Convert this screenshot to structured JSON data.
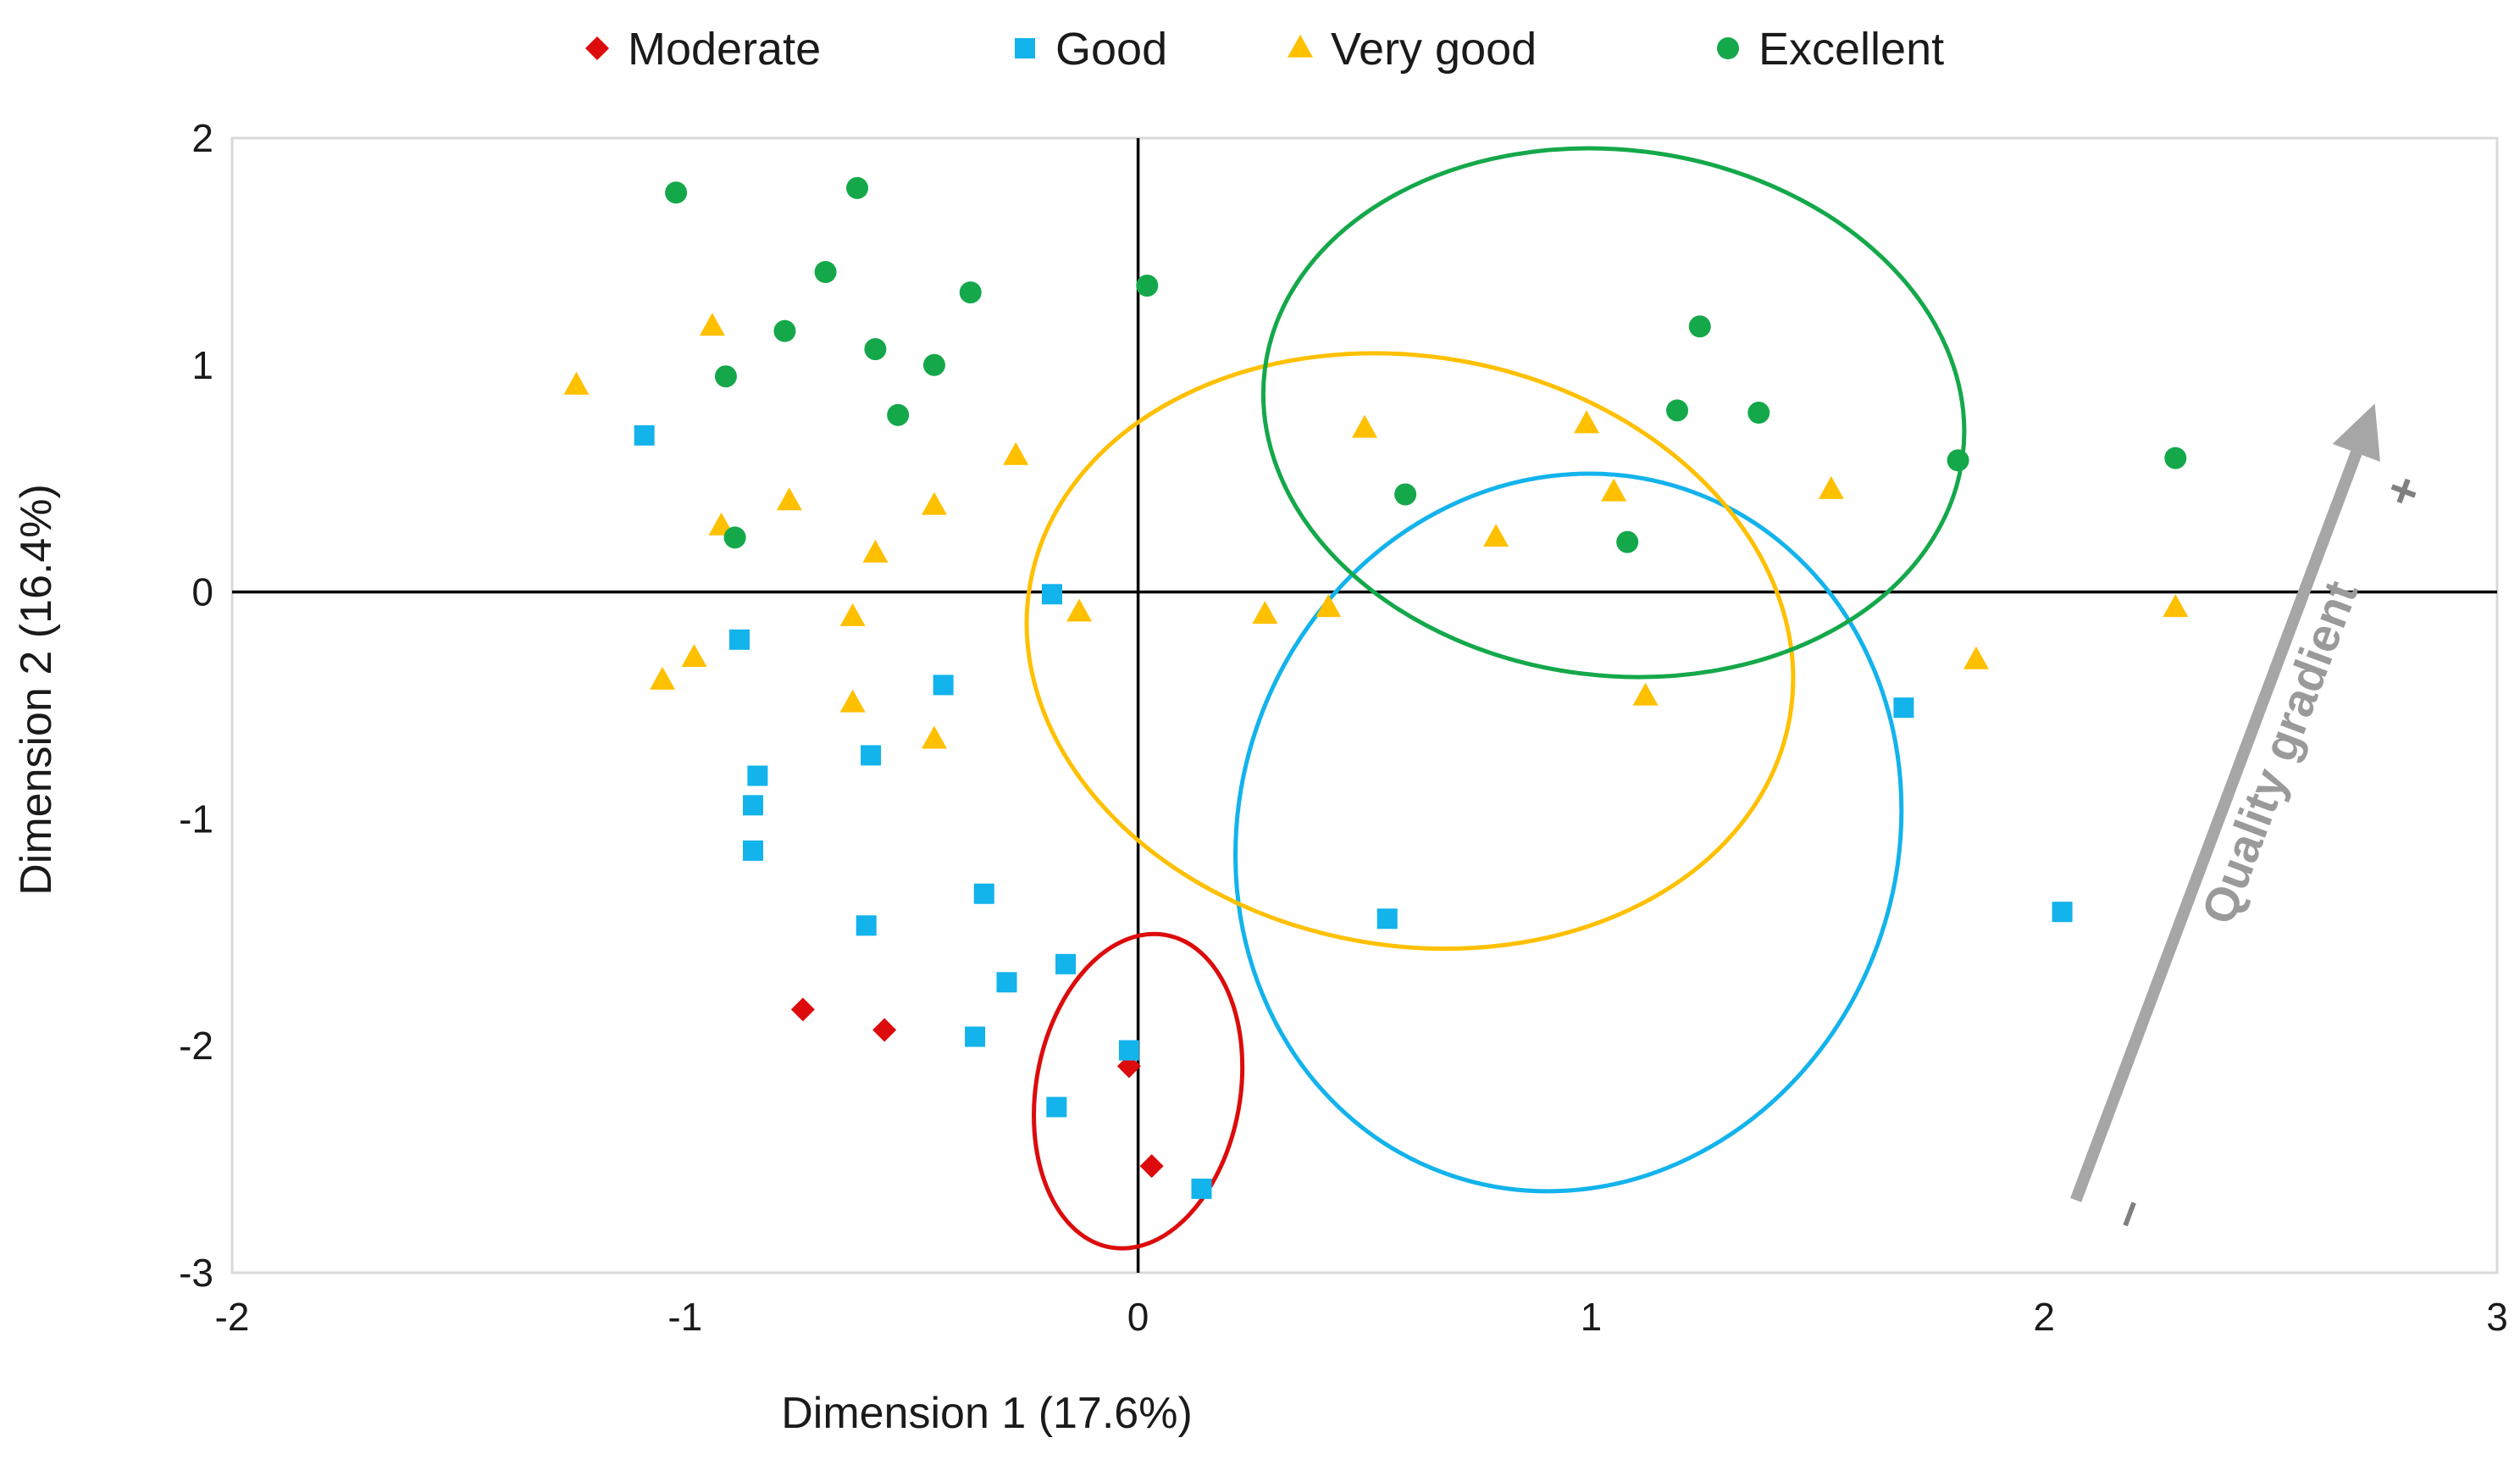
{
  "chart_data": {
    "type": "scatter",
    "title": "",
    "xlabel": "Dimension 1 (17.6%)",
    "ylabel": "Dimension 2 (16.4%)",
    "xlim": [
      -2,
      3
    ],
    "ylim": [
      -3,
      2
    ],
    "xticks": [
      -2,
      -1,
      0,
      1,
      2,
      3
    ],
    "yticks": [
      -3,
      -2,
      -1,
      0,
      1,
      2
    ],
    "xtick_labels": [
      "-2",
      "-1",
      "0",
      "1",
      "2",
      "3"
    ],
    "ytick_labels": [
      "-3",
      "-2",
      "-1",
      "0",
      "1",
      "2"
    ],
    "grid": false,
    "legend_position": "top",
    "colors": {
      "Moderate": "#dd0b0b",
      "Good": "#13b3ec",
      "Very good": "#ffc000",
      "Excellent": "#14a84a",
      "gradient": "#a6a6a6",
      "axis": "#000000",
      "frame": "#d9d9d9"
    },
    "series": [
      {
        "name": "Moderate",
        "marker": "diamond",
        "points": [
          [
            -0.74,
            -1.84
          ],
          [
            -0.56,
            -1.93
          ],
          [
            -0.02,
            -2.09
          ],
          [
            0.03,
            -2.53
          ]
        ]
      },
      {
        "name": "Good",
        "marker": "square",
        "points": [
          [
            -1.09,
            0.69
          ],
          [
            -0.88,
            -0.21
          ],
          [
            -0.84,
            -0.81
          ],
          [
            -0.85,
            -0.94
          ],
          [
            -0.85,
            -1.14
          ],
          [
            -0.59,
            -0.72
          ],
          [
            -0.43,
            -0.41
          ],
          [
            -0.19,
            -0.01
          ],
          [
            -0.6,
            -1.47
          ],
          [
            -0.34,
            -1.33
          ],
          [
            -0.29,
            -1.72
          ],
          [
            -0.16,
            -1.64
          ],
          [
            -0.36,
            -1.96
          ],
          [
            -0.18,
            -2.27
          ],
          [
            -0.02,
            -2.02
          ],
          [
            0.14,
            -2.63
          ],
          [
            0.55,
            -1.44
          ],
          [
            1.69,
            -0.51
          ],
          [
            2.04,
            -1.41
          ]
        ]
      },
      {
        "name": "Very good",
        "marker": "triangle",
        "points": [
          [
            -1.24,
            0.91
          ],
          [
            -0.94,
            1.17
          ],
          [
            -0.92,
            0.29
          ],
          [
            -0.77,
            0.4
          ],
          [
            -0.98,
            -0.29
          ],
          [
            -1.05,
            -0.39
          ],
          [
            -0.63,
            -0.11
          ],
          [
            -0.58,
            0.17
          ],
          [
            -0.63,
            -0.49
          ],
          [
            -0.45,
            0.38
          ],
          [
            -0.27,
            0.6
          ],
          [
            -0.45,
            -0.65
          ],
          [
            -0.13,
            -0.09
          ],
          [
            0.28,
            -0.1
          ],
          [
            0.42,
            -0.07
          ],
          [
            0.5,
            0.72
          ],
          [
            0.79,
            0.24
          ],
          [
            0.99,
            0.74
          ],
          [
            1.05,
            0.44
          ],
          [
            1.12,
            -0.46
          ],
          [
            1.53,
            0.45
          ],
          [
            1.85,
            -0.3
          ],
          [
            2.29,
            -0.07
          ]
        ]
      },
      {
        "name": "Excellent",
        "marker": "circle",
        "points": [
          [
            -1.02,
            1.76
          ],
          [
            -0.91,
            0.95
          ],
          [
            -0.89,
            0.24
          ],
          [
            -0.78,
            1.15
          ],
          [
            -0.69,
            1.41
          ],
          [
            -0.62,
            1.78
          ],
          [
            -0.58,
            1.07
          ],
          [
            -0.53,
            0.78
          ],
          [
            -0.45,
            1.0
          ],
          [
            -0.37,
            1.32
          ],
          [
            0.02,
            1.35
          ],
          [
            0.59,
            0.43
          ],
          [
            1.08,
            0.22
          ],
          [
            1.19,
            0.8
          ],
          [
            1.24,
            1.17
          ],
          [
            1.37,
            0.79
          ],
          [
            1.81,
            0.58
          ],
          [
            2.29,
            0.59
          ]
        ]
      }
    ],
    "ellipses": [
      {
        "name": "Moderate",
        "cx": 0.0,
        "cy": -2.2,
        "rx": 0.35,
        "ry": 0.45,
        "angle": -10
      },
      {
        "name": "Good",
        "cx": 0.95,
        "cy": -1.06,
        "rx": 0.8,
        "ry": 1.45,
        "angle": -20
      },
      {
        "name": "Very good",
        "cx": 0.6,
        "cy": -0.26,
        "rx": 0.65,
        "ry": 1.7,
        "angle": -10
      },
      {
        "name": "Excellent",
        "cx": 1.05,
        "cy": 0.79,
        "rx": 0.58,
        "ry": 1.55,
        "angle": -7
      }
    ],
    "annotation": {
      "text": "Quality gradient",
      "plus": "+",
      "minus": "–",
      "arrow_from": [
        2.07,
        -2.68
      ],
      "arrow_to": [
        2.73,
        0.83
      ]
    },
    "legend": [
      "Moderate",
      "Good",
      "Very good",
      "Excellent"
    ]
  }
}
